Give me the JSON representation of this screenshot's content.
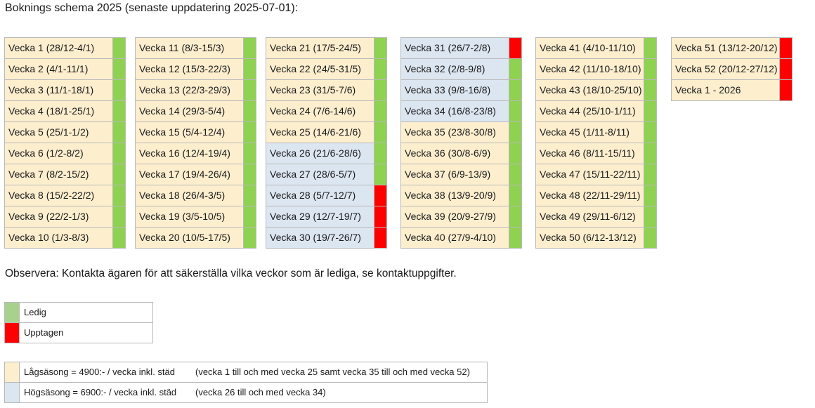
{
  "title": "Boknings schema 2025 (senaste uppdatering 2025-07-01):",
  "colors": {
    "low_season": "#fdeece",
    "high_season": "#dce6f1",
    "free": "#8fd151",
    "booked": "#ff0000"
  },
  "columns": [
    {
      "rows": [
        {
          "label": "Vecka 1 (28/12-4/1)",
          "season": "low",
          "status": "free"
        },
        {
          "label": "Vecka 2 (4/1-11/1)",
          "season": "low",
          "status": "free"
        },
        {
          "label": "Vecka 3 (11/1-18/1)",
          "season": "low",
          "status": "free"
        },
        {
          "label": "Vecka 4 (18/1-25/1)",
          "season": "low",
          "status": "free"
        },
        {
          "label": "Vecka 5 (25/1-1/2)",
          "season": "low",
          "status": "free"
        },
        {
          "label": "Vecka 6 (1/2-8/2)",
          "season": "low",
          "status": "free"
        },
        {
          "label": "Vecka 7 (8/2-15/2)",
          "season": "low",
          "status": "free"
        },
        {
          "label": "Vecka 8 (15/2-22/2)",
          "season": "low",
          "status": "free"
        },
        {
          "label": "Vecka 9 (22/2-1/3)",
          "season": "low",
          "status": "free"
        },
        {
          "label": "Vecka 10 (1/3-8/3)",
          "season": "low",
          "status": "free"
        }
      ]
    },
    {
      "rows": [
        {
          "label": "Vecka 11 (8/3-15/3)",
          "season": "low",
          "status": "free"
        },
        {
          "label": "Vecka 12 (15/3-22/3)",
          "season": "low",
          "status": "free"
        },
        {
          "label": "Vecka 13 (22/3-29/3)",
          "season": "low",
          "status": "free"
        },
        {
          "label": "Vecka 14 (29/3-5/4)",
          "season": "low",
          "status": "free"
        },
        {
          "label": "Vecka 15 (5/4-12/4)",
          "season": "low",
          "status": "free"
        },
        {
          "label": "Vecka 16 (12/4-19/4)",
          "season": "low",
          "status": "free"
        },
        {
          "label": "Vecka 17 (19/4-26/4)",
          "season": "low",
          "status": "free"
        },
        {
          "label": "Vecka 18 (26/4-3/5)",
          "season": "low",
          "status": "free"
        },
        {
          "label": "Vecka 19 (3/5-10/5)",
          "season": "low",
          "status": "free"
        },
        {
          "label": "Vecka 20 (10/5-17/5)",
          "season": "low",
          "status": "free"
        }
      ]
    },
    {
      "rows": [
        {
          "label": "Vecka 21 (17/5-24/5)",
          "season": "low",
          "status": "free"
        },
        {
          "label": "Vecka 22 (24/5-31/5)",
          "season": "low",
          "status": "free"
        },
        {
          "label": "Vecka 23 (31/5-7/6)",
          "season": "low",
          "status": "free"
        },
        {
          "label": "Vecka 24 (7/6-14/6)",
          "season": "low",
          "status": "free"
        },
        {
          "label": "Vecka 25 (14/6-21/6)",
          "season": "low",
          "status": "free"
        },
        {
          "label": "Vecka 26 (21/6-28/6)",
          "season": "high",
          "status": "free"
        },
        {
          "label": "Vecka 27 (28/6-5/7)",
          "season": "high",
          "status": "free"
        },
        {
          "label": "Vecka 28 (5/7-12/7)",
          "season": "high",
          "status": "booked"
        },
        {
          "label": "Vecka 29 (12/7-19/7)",
          "season": "high",
          "status": "booked"
        },
        {
          "label": "Vecka 30 (19/7-26/7)",
          "season": "high",
          "status": "booked"
        }
      ]
    },
    {
      "rows": [
        {
          "label": "Vecka 31 (26/7-2/8)",
          "season": "high",
          "status": "booked"
        },
        {
          "label": "Vecka 32 (2/8-9/8)",
          "season": "high",
          "status": "free"
        },
        {
          "label": "Vecka 33 (9/8-16/8)",
          "season": "high",
          "status": "free"
        },
        {
          "label": "Vecka 34 (16/8-23/8)",
          "season": "high",
          "status": "free"
        },
        {
          "label": "Vecka 35 (23/8-30/8)",
          "season": "low",
          "status": "free"
        },
        {
          "label": "Vecka 36 (30/8-6/9)",
          "season": "low",
          "status": "free"
        },
        {
          "label": "Vecka 37 (6/9-13/9)",
          "season": "low",
          "status": "free"
        },
        {
          "label": "Vecka 38 (13/9-20/9)",
          "season": "low",
          "status": "free"
        },
        {
          "label": "Vecka 39 (20/9-27/9)",
          "season": "low",
          "status": "free"
        },
        {
          "label": "Vecka 40 (27/9-4/10)",
          "season": "low",
          "status": "free"
        }
      ]
    },
    {
      "rows": [
        {
          "label": "Vecka 41 (4/10-11/10)",
          "season": "low",
          "status": "free"
        },
        {
          "label": "Vecka 42 (11/10-18/10)",
          "season": "low",
          "status": "free"
        },
        {
          "label": "Vecka 43 (18/10-25/10)",
          "season": "low",
          "status": "free"
        },
        {
          "label": "Vecka 44 (25/10-1/11)",
          "season": "low",
          "status": "free"
        },
        {
          "label": "Vecka 45 (1/11-8/11)",
          "season": "low",
          "status": "free"
        },
        {
          "label": "Vecka 46 (8/11-15/11)",
          "season": "low",
          "status": "free"
        },
        {
          "label": "Vecka 47 (15/11-22/11)",
          "season": "low",
          "status": "free"
        },
        {
          "label": "Vecka 48 (22/11-29/11)",
          "season": "low",
          "status": "free"
        },
        {
          "label": "Vecka 49 (29/11-6/12)",
          "season": "low",
          "status": "free"
        },
        {
          "label": "Vecka 50 (6/12-13/12)",
          "season": "low",
          "status": "free"
        }
      ]
    },
    {
      "rows": [
        {
          "label": "Vecka 51 (13/12-20/12)",
          "season": "low",
          "status": "booked"
        },
        {
          "label": "Vecka 52 (20/12-27/12)",
          "season": "low",
          "status": "booked"
        },
        {
          "label": "Vecka 1 - 2026",
          "season": "low",
          "status": "booked"
        }
      ]
    }
  ],
  "note": "Observera: Kontakta ägaren för att säkerställa vilka veckor som är lediga, se kontaktuppgifter.",
  "legend": {
    "free_label": "Ledig",
    "booked_label": "Upptagen"
  },
  "seasons": {
    "low": {
      "price": "Lågsäsong = 4900:- / vecka inkl. städ",
      "range": "(vecka 1 till och med vecka 25 samt vecka 35 till och med vecka 52)"
    },
    "high": {
      "price": "Högsäsong = 6900:- / vecka inkl. städ",
      "range": "(vecka 26 till och med vecka 34)"
    }
  }
}
